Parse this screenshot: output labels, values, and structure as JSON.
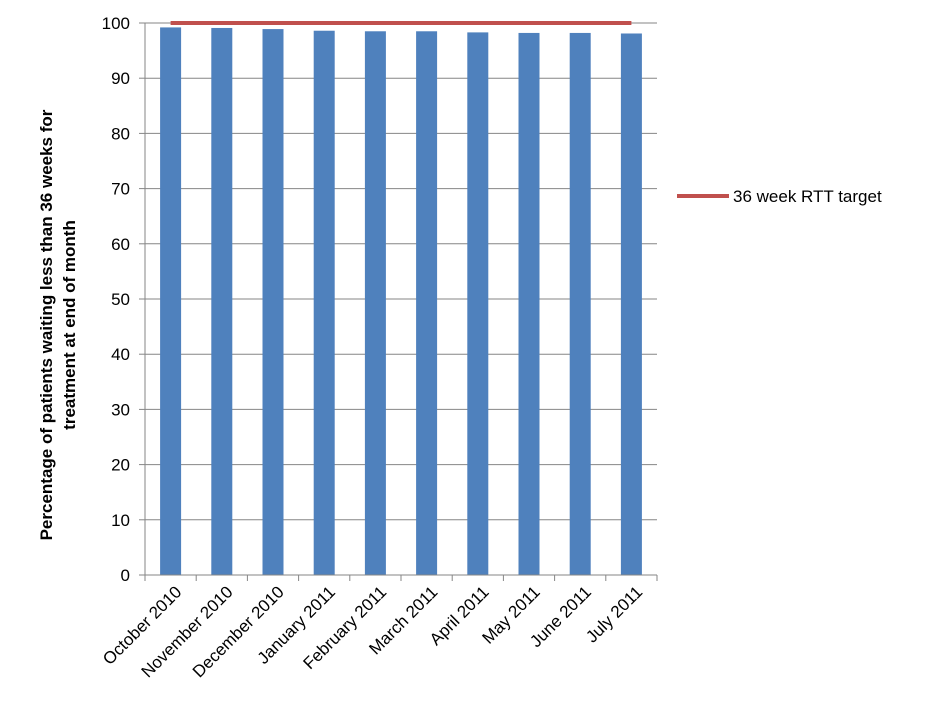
{
  "chart_data": {
    "type": "bar",
    "categories": [
      "October 2010",
      "November 2010",
      "December 2010",
      "January 2011",
      "February 2011",
      "March 2011",
      "April 2011",
      "May 2011",
      "June 2011",
      "July 2011"
    ],
    "series": [
      {
        "values": [
          99.2,
          99.1,
          98.9,
          98.6,
          98.5,
          98.5,
          98.3,
          98.2,
          98.2,
          98.1
        ],
        "color": "#4F81BD",
        "type": "bar"
      },
      {
        "name": "36 week RTT target",
        "values": [
          100,
          100,
          100,
          100,
          100,
          100,
          100,
          100,
          100,
          100
        ],
        "color": "#C0504D",
        "type": "line"
      }
    ],
    "title": "",
    "xlabel": "",
    "ylabel_lines": [
      "Percentage of patients waiting less than 36 weeks for",
      "treatment at end of month"
    ],
    "ylim": [
      0,
      100
    ],
    "yticks": [
      0,
      10,
      20,
      30,
      40,
      50,
      60,
      70,
      80,
      90,
      100
    ],
    "grid": true,
    "legend_position": "right"
  }
}
